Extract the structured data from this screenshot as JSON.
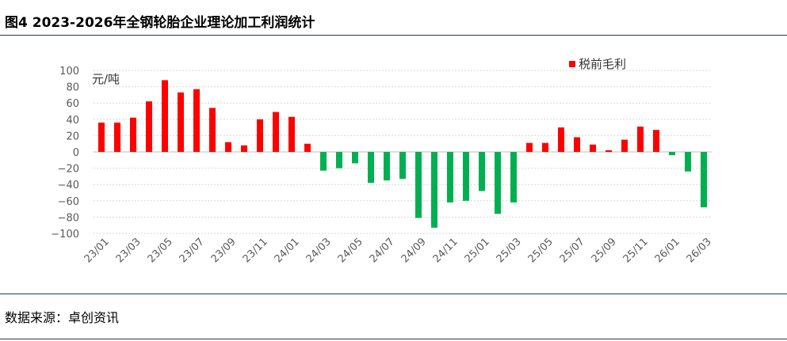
{
  "title": "图4 2023-2026年全钢轮胎企业理论加工利润统计",
  "source": "数据来源：卓创资讯",
  "colors": {
    "positive": "#ff0000",
    "negative": "#00b050",
    "grid": "#d9d9d9",
    "rule": "#1f3a5a"
  },
  "chart_data": {
    "type": "bar",
    "unit_label": "元/吨",
    "ylim": [
      -100,
      100
    ],
    "yticks": [
      100,
      80,
      60,
      40,
      20,
      0,
      -20,
      -40,
      -60,
      -80,
      -100
    ],
    "grid": true,
    "legend_position": "top-right",
    "series": [
      {
        "name": "税前毛利",
        "values": [
          36,
          36,
          42,
          62,
          88,
          73,
          77,
          54,
          12,
          8,
          40,
          49,
          43,
          10,
          -23,
          -20,
          -14,
          -38,
          -35,
          -33,
          -81,
          -93,
          -62,
          -60,
          -48,
          -76,
          -62,
          11,
          11,
          30,
          18,
          9,
          2,
          15,
          31,
          27,
          -4,
          -24,
          -68
        ]
      }
    ],
    "categories": [
      "23/01",
      "23/02",
      "23/03",
      "23/04",
      "23/05",
      "23/06",
      "23/07",
      "23/08",
      "23/09",
      "23/10",
      "23/11",
      "23/12",
      "24/01",
      "24/02",
      "24/03",
      "24/04",
      "24/05",
      "24/06",
      "24/07",
      "24/08",
      "24/09",
      "24/10",
      "24/11",
      "24/12",
      "25/01",
      "25/02",
      "25/03",
      "25/04",
      "25/05",
      "25/06",
      "25/07",
      "25/08",
      "25/09",
      "25/10",
      "25/11",
      "25/12",
      "26/01",
      "26/02",
      "26/03"
    ],
    "xtick_labels": [
      "23/01",
      "23/03",
      "23/05",
      "23/07",
      "23/09",
      "23/11",
      "24/01",
      "24/03",
      "24/05",
      "24/07",
      "24/09",
      "24/11",
      "25/01",
      "25/03",
      "25/05",
      "25/07",
      "25/09",
      "25/11",
      "26/01",
      "26/03"
    ]
  }
}
